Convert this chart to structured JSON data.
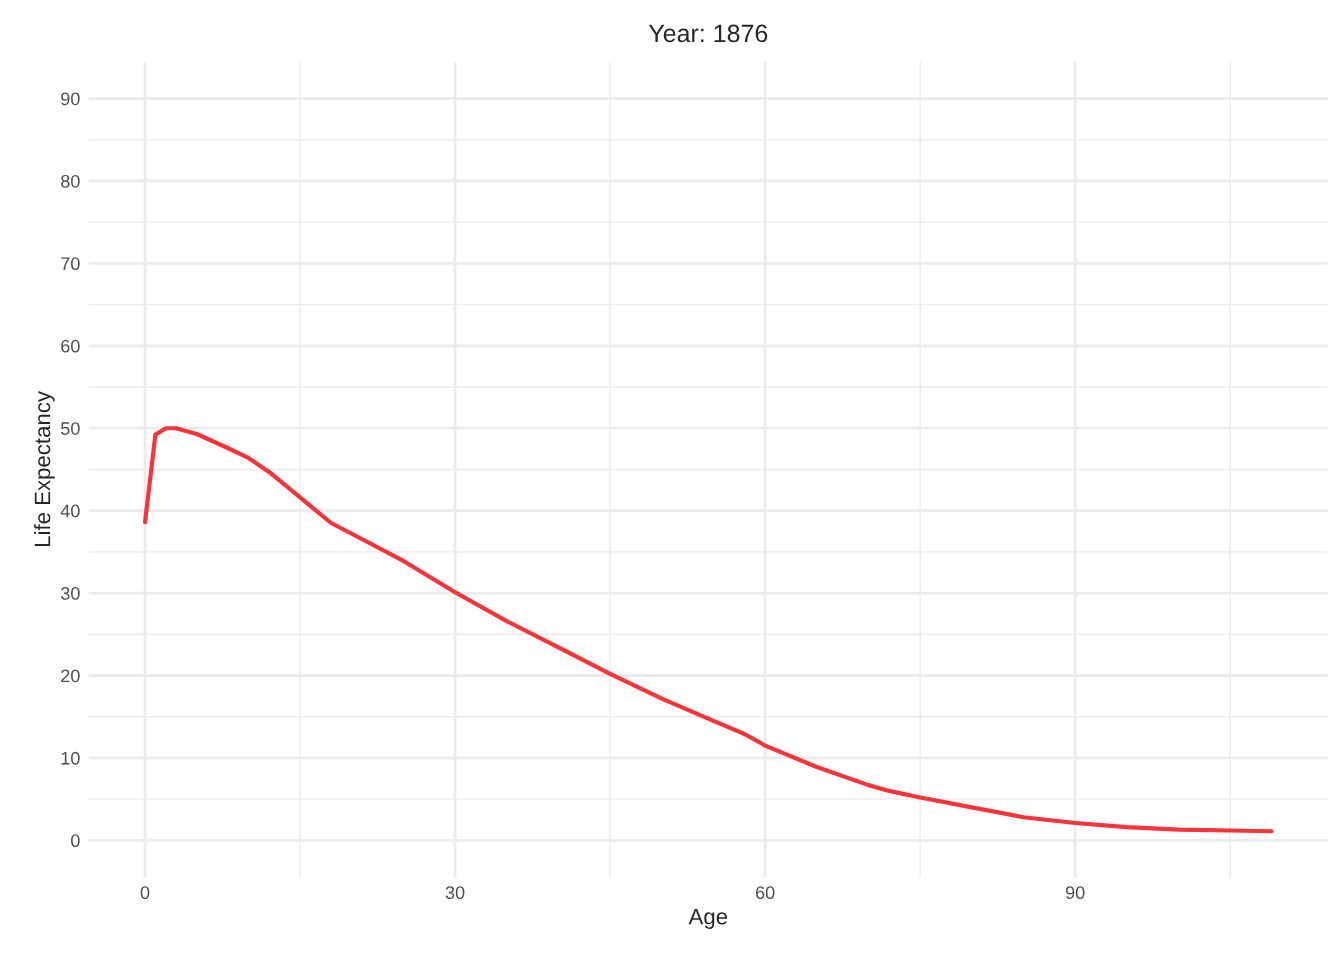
{
  "chart_data": {
    "type": "line",
    "title": "Year: 1876",
    "xlabel": "Age",
    "ylabel": "Life Expectancy",
    "x": [
      0,
      1,
      2,
      3,
      5,
      8,
      10,
      12,
      15,
      18,
      20,
      25,
      30,
      35,
      40,
      45,
      50,
      55,
      58,
      60,
      65,
      70,
      72,
      75,
      80,
      85,
      90,
      95,
      100,
      105,
      109
    ],
    "series": [
      {
        "color": "#f8333a",
        "values": [
          38.6,
          49.2,
          50.0,
          50.0,
          49.3,
          47.6,
          46.4,
          44.7,
          41.6,
          38.5,
          37.2,
          33.9,
          30.1,
          26.6,
          23.4,
          20.2,
          17.2,
          14.5,
          12.9,
          11.5,
          8.9,
          6.7,
          6.0,
          5.2,
          4.0,
          2.8,
          2.1,
          1.6,
          1.3,
          1.2,
          1.1
        ]
      }
    ],
    "xlim": [
      -5.45,
      114.45
    ],
    "ylim": [
      -4.5,
      94.5
    ],
    "xticks": [
      0,
      {
        "value": 15,
        "label": null
      },
      30,
      {
        "value": 45,
        "label": null
      },
      60,
      {
        "value": 75,
        "label": null
      },
      90,
      {
        "value": 105,
        "label": null
      }
    ],
    "yticks": [
      0,
      {
        "value": 5,
        "label": null
      },
      10,
      {
        "value": 15,
        "label": null
      },
      20,
      {
        "value": 25,
        "label": null
      },
      30,
      {
        "value": 35,
        "label": null
      },
      40,
      {
        "value": 45,
        "label": null
      },
      50,
      {
        "value": 55,
        "label": null
      },
      60,
      {
        "value": 65,
        "label": null
      },
      70,
      {
        "value": 75,
        "label": null
      },
      80,
      {
        "value": 85,
        "label": null
      },
      90
    ],
    "grid": true,
    "marker": "none",
    "line_style": "solid"
  }
}
